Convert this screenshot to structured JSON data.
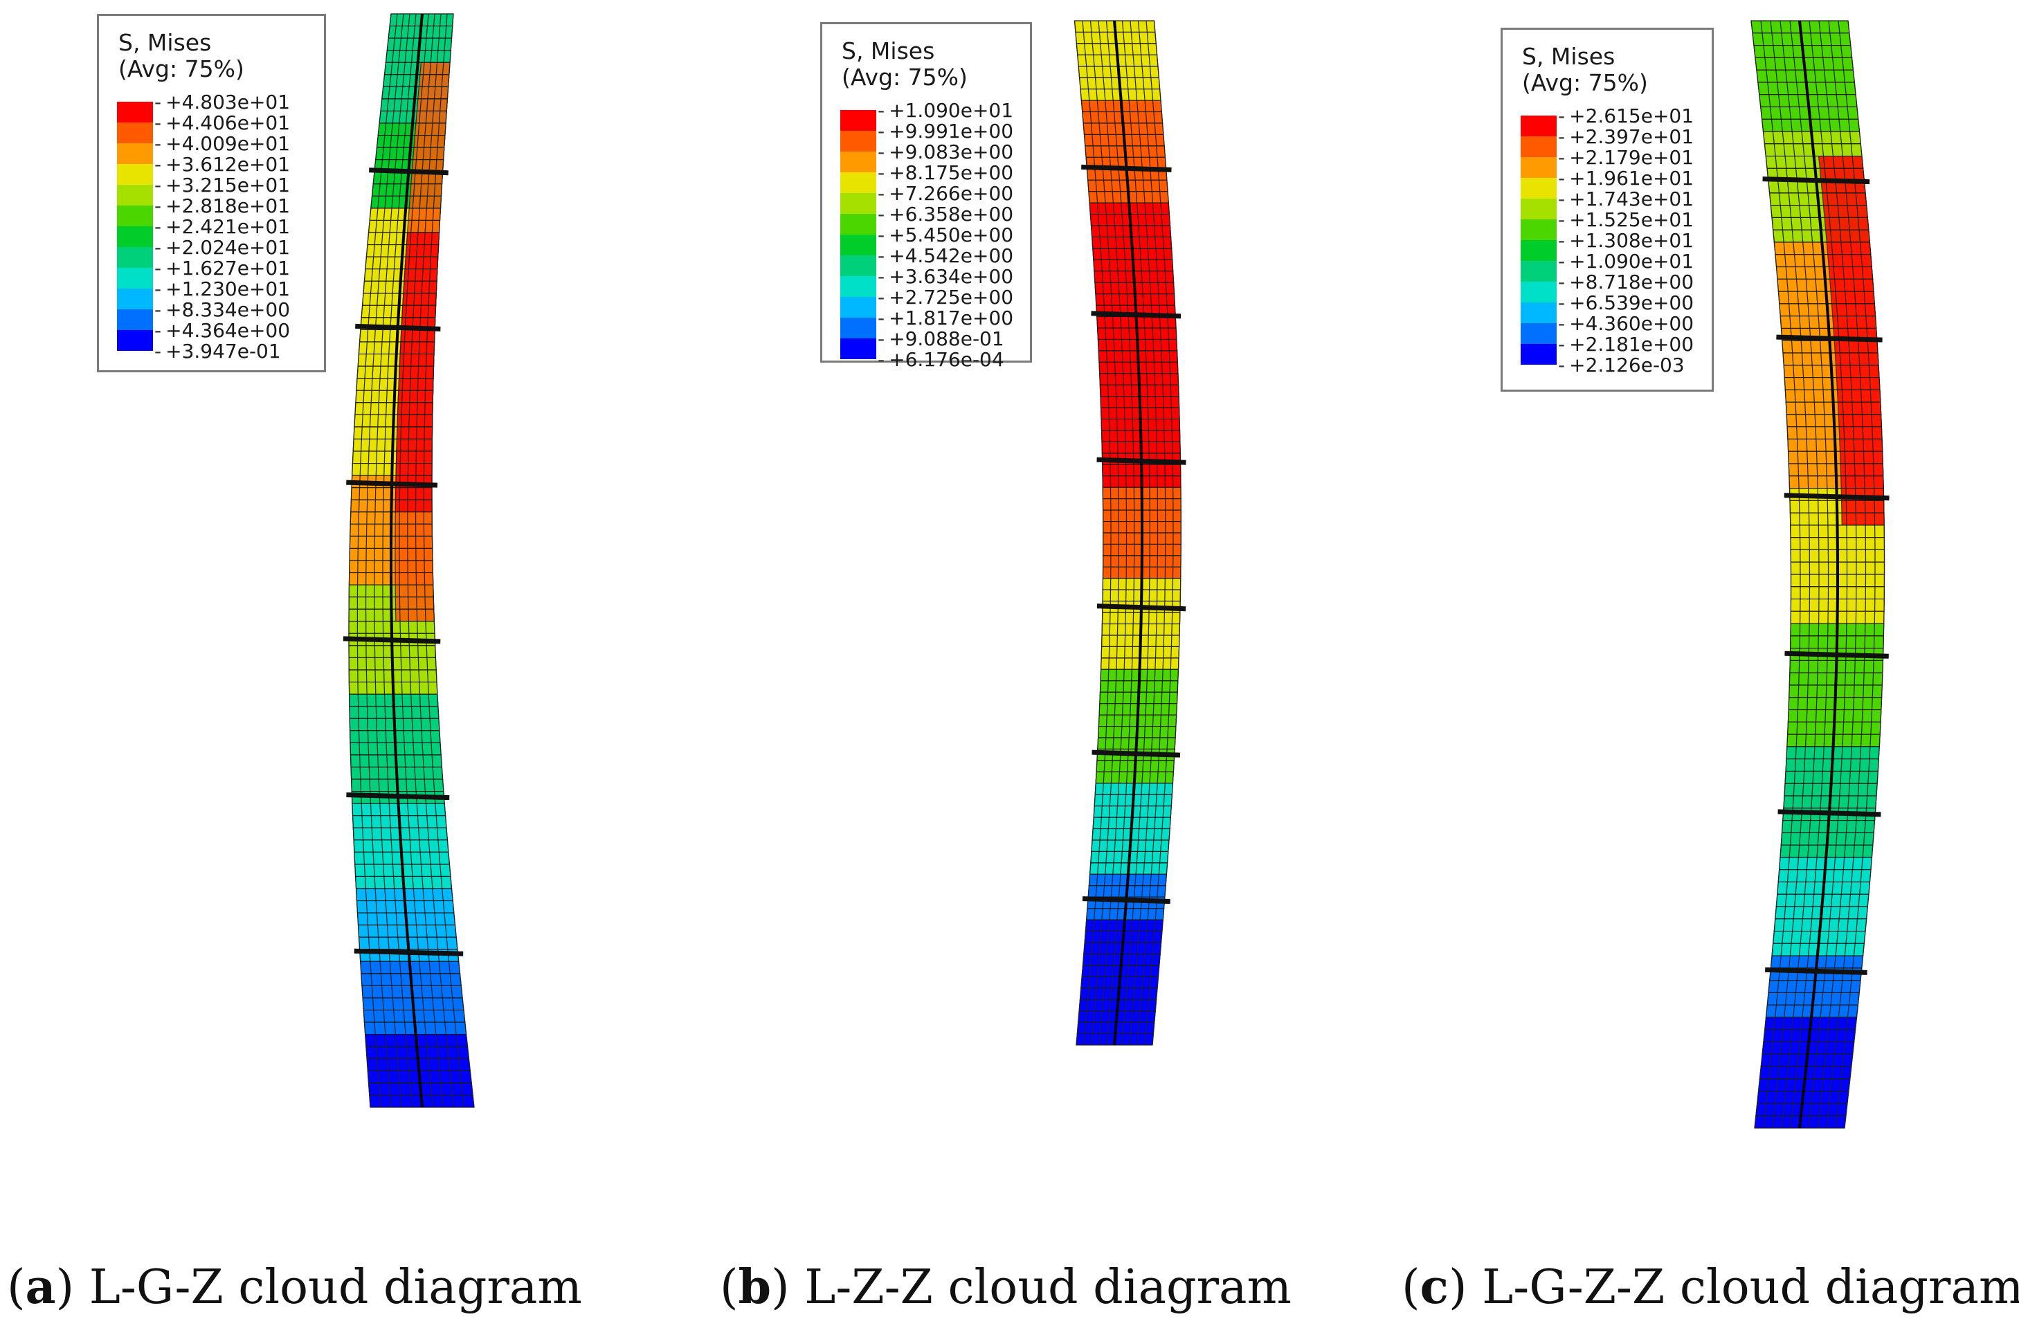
{
  "legend_title": "S, Mises",
  "legend_subtitle": "(Avg: 75%)",
  "legend_colors": [
    "#ff0000",
    "#ff5a00",
    "#ff9a00",
    "#e8e400",
    "#a6e000",
    "#4cd600",
    "#00cc2a",
    "#00d07a",
    "#00e0c8",
    "#00b8ff",
    "#0070ff",
    "#0000ff"
  ],
  "panels": [
    {
      "id": "a",
      "caption_letter": "a",
      "caption_text": "L-G-Z cloud diagram",
      "legend_values": [
        "+4.803e+01",
        "+4.406e+01",
        "+4.009e+01",
        "+3.612e+01",
        "+3.215e+01",
        "+2.818e+01",
        "+2.421e+01",
        "+2.024e+01",
        "+1.627e+01",
        "+1.230e+01",
        "+8.334e+00",
        "+4.364e+00",
        "+3.947e-01"
      ]
    },
    {
      "id": "b",
      "caption_letter": "b",
      "caption_text": "L-Z-Z cloud diagram",
      "legend_values": [
        "+1.090e+01",
        "+9.991e+00",
        "+9.083e+00",
        "+8.175e+00",
        "+7.266e+00",
        "+6.358e+00",
        "+5.450e+00",
        "+4.542e+00",
        "+3.634e+00",
        "+2.725e+00",
        "+1.817e+00",
        "+9.088e-01",
        "+6.176e-04"
      ]
    },
    {
      "id": "c",
      "caption_letter": "c",
      "caption_text": "L-G-Z-Z cloud diagram",
      "legend_values": [
        "+2.615e+01",
        "+2.397e+01",
        "+2.179e+01",
        "+1.961e+01",
        "+1.743e+01",
        "+1.525e+01",
        "+1.308e+01",
        "+1.090e+01",
        "+8.718e+00",
        "+6.539e+00",
        "+4.360e+00",
        "+2.181e+00",
        "+2.126e-03"
      ]
    }
  ]
}
